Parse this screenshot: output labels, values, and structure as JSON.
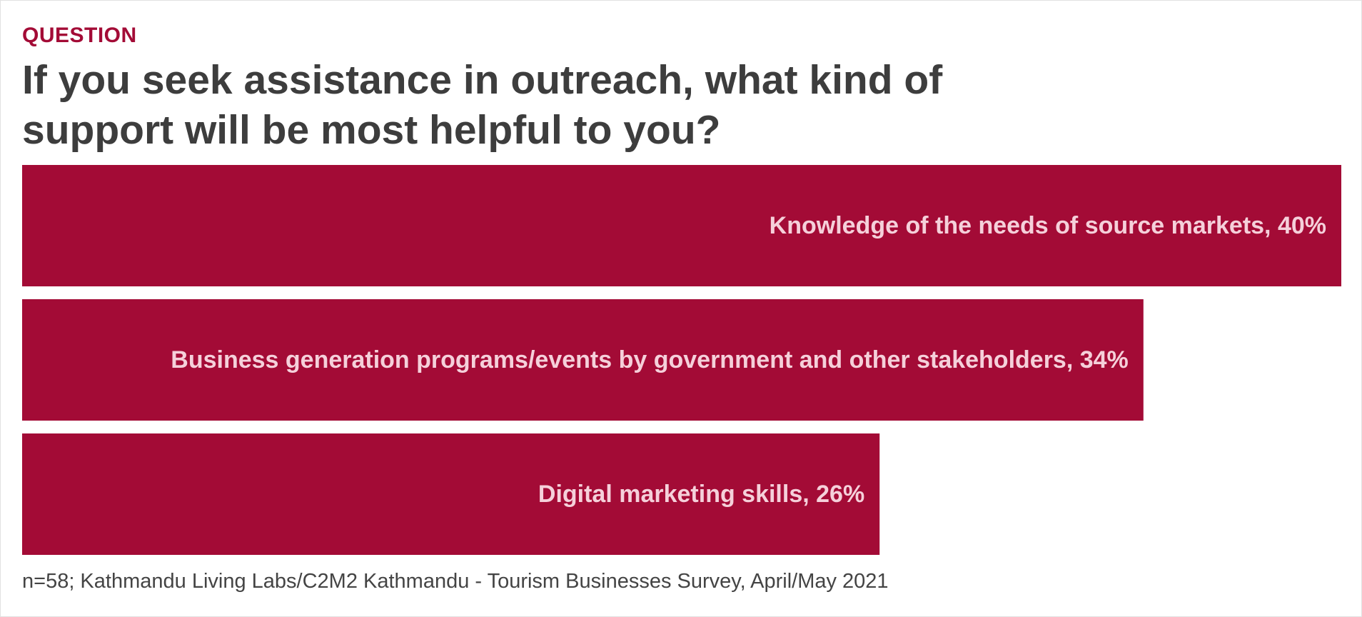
{
  "header": {
    "eyebrow": "QUESTION",
    "title": "If you seek assistance in outreach, what kind of support will be most helpful to you?"
  },
  "chart_data": {
    "type": "bar",
    "orientation": "horizontal",
    "categories": [
      "Knowledge of the needs of source markets",
      "Business generation programs/events by government and other stakeholders",
      "Digital marketing skills"
    ],
    "values": [
      40,
      34,
      26
    ],
    "value_suffix": "%",
    "labels": [
      "Knowledge of the needs of source markets, 40%",
      "Business generation programs/events by government and other stakeholders, 34%",
      "Digital marketing skills, 26%"
    ],
    "xlim": [
      0,
      40
    ],
    "grid": false,
    "legend": "none",
    "bar_color": "#a30b36",
    "label_color": "#f5d0da"
  },
  "footer": {
    "source": "n=58; Kathmandu Living Labs/C2M2 Kathmandu - Tourism Businesses Survey, April/May 2021"
  }
}
